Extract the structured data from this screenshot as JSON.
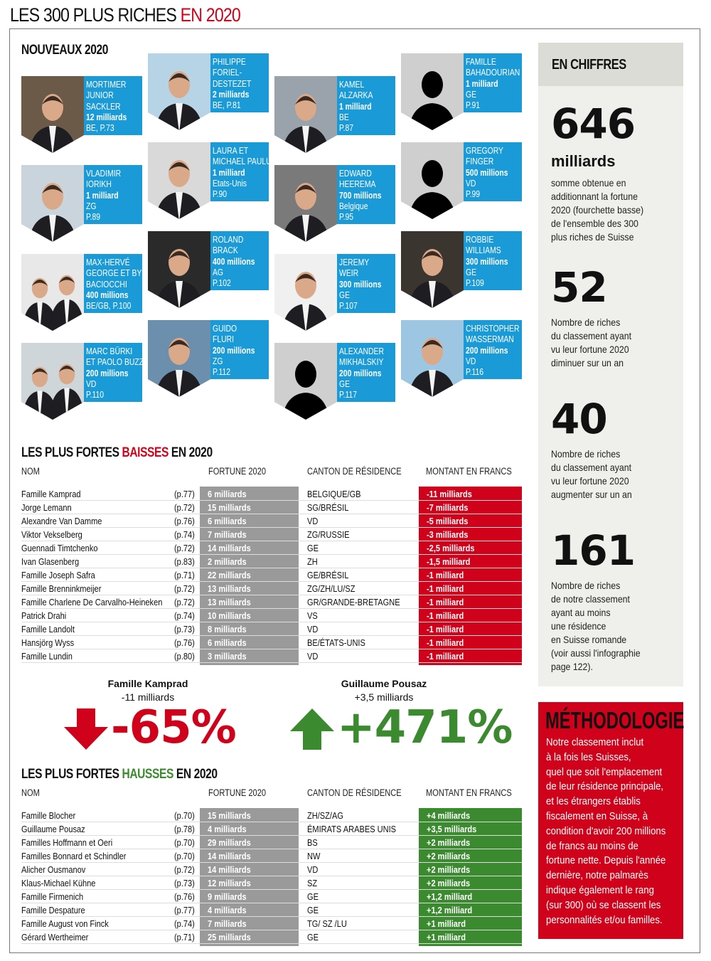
{
  "page_title": {
    "main": "LES 300 PLUS RICHES",
    "accent": "EN 2020"
  },
  "colors": {
    "blue": "#1a9ad6",
    "red": "#d0021b",
    "green": "#3b8a2f",
    "gray": "#9a9a9a",
    "sidebar": "#efefeb"
  },
  "nouveaux": {
    "title": "NOUVEAUX 2020",
    "cards": [
      {
        "name": [
          "MORTIMER",
          "JUNIOR",
          "SACKLER"
        ],
        "amount": "12 milliards",
        "details": [
          "BE, P.73"
        ],
        "photo": "photo"
      },
      {
        "name": [
          "VLADIMIR",
          "IORIKH"
        ],
        "amount": "1 milliard",
        "details": [
          "ZG",
          "P.89"
        ],
        "photo": "photo"
      },
      {
        "name": [
          "MAX-HERVÉ",
          "GEORGE ET BYRON",
          "BACIOCCHI"
        ],
        "amount": "400 millions",
        "details": [
          "BE/GB, P.100"
        ],
        "photo": "photo-duo"
      },
      {
        "name": [
          "MARC BÜRKI",
          "ET PAOLO BUZZI"
        ],
        "amount": "200 millions",
        "details": [
          "VD",
          "P.110"
        ],
        "photo": "photo-duo"
      },
      {
        "name": [
          "PHILIPPE",
          "FORIEL-",
          "DESTEZET"
        ],
        "amount": "2 milliards",
        "details": [
          "BE, P.81"
        ],
        "photo": "photo"
      },
      {
        "name": [
          "LAURA ET",
          "MICHAEL PAULUS"
        ],
        "amount": "1 milliard",
        "details": [
          "Etats-Unis",
          "P.90"
        ],
        "photo": "photo"
      },
      {
        "name": [
          "ROLAND",
          "BRACK"
        ],
        "amount": "400 millions",
        "details": [
          "AG",
          "P.102"
        ],
        "photo": "photo"
      },
      {
        "name": [
          "GUIDO",
          "FLURI"
        ],
        "amount": "200 millions",
        "details": [
          "ZG",
          "P.112"
        ],
        "photo": "photo"
      },
      {
        "name": [
          "KAMEL",
          "ALZARKA"
        ],
        "amount": "1 milliard",
        "details": [
          "BE",
          "P.87"
        ],
        "photo": "photo"
      },
      {
        "name": [
          "EDWARD",
          "HEEREMA"
        ],
        "amount": "700 millions",
        "details": [
          "Belgique",
          "P.95"
        ],
        "photo": "photo"
      },
      {
        "name": [
          "JEREMY",
          "WEIR"
        ],
        "amount": "300 millions",
        "details": [
          "GE",
          "P.107"
        ],
        "photo": "photo"
      },
      {
        "name": [
          "ALEXANDER",
          "MIKHALSKIY"
        ],
        "amount": "200 millions",
        "details": [
          "GE",
          "P.117"
        ],
        "photo": "silhouette"
      },
      {
        "name": [
          "FAMILLE",
          "BAHADOURIAN"
        ],
        "amount": "1 milliard",
        "details": [
          "GE",
          "P.91"
        ],
        "photo": "silhouette"
      },
      {
        "name": [
          "GREGORY",
          "FINGER"
        ],
        "amount": "500 millions",
        "details": [
          "VD",
          "P.99"
        ],
        "photo": "silhouette"
      },
      {
        "name": [
          "ROBBIE",
          "WILLIAMS"
        ],
        "amount": "300 millions",
        "details": [
          "GE",
          "P.109"
        ],
        "photo": "photo"
      },
      {
        "name": [
          "CHRISTOPHER",
          "WASSERMAN"
        ],
        "amount": "200 millions",
        "details": [
          "VD",
          "P.116"
        ],
        "photo": "photo"
      }
    ]
  },
  "columns": {
    "nom": "NOM",
    "fortune": "FORTUNE 2020",
    "canton": "CANTON DE RÉSIDENCE",
    "montant": "MONTANT EN FRANCS"
  },
  "baisses": {
    "title_a": "LES PLUS FORTES",
    "title_b": "BAISSES",
    "title_c": "EN 2020",
    "rows": [
      [
        "Famille Kamprad",
        "(p.77)",
        "6 milliards",
        "BELGIQUE/GB",
        "-11 milliards"
      ],
      [
        "Jorge Lemann",
        "(p.72)",
        "15 milliards",
        "SG/BRÉSIL",
        "-7 milliards"
      ],
      [
        "Alexandre Van Damme",
        "(p.76)",
        "6 milliards",
        "VD",
        "-5 milliards"
      ],
      [
        "Viktor Vekselberg",
        "(p.74)",
        "7 milliards",
        "ZG/RUSSIE",
        "-3 milliards"
      ],
      [
        "Guennadi Timtchenko",
        "(p.72)",
        "14 milliards",
        "GE",
        "-2,5 milliards"
      ],
      [
        "Ivan Glasenberg",
        "(p.83)",
        "2 milliards",
        "ZH",
        "-1,5 milliard"
      ],
      [
        "Famille Joseph Safra",
        "(p.71)",
        "22 milliards",
        "GE/BRÉSIL",
        "-1 milliard"
      ],
      [
        "Famille Brenninkmeijer",
        "(p.72)",
        "13 milliards",
        "ZG/ZH/LU/SZ",
        "-1 milliard"
      ],
      [
        "Famille Charlene De Carvalho-Heineken",
        "(p.72)",
        "13 milliards",
        "GR/GRANDE-BRETAGNE",
        "-1 milliard"
      ],
      [
        "Patrick Drahi",
        "(p.74)",
        "10 milliards",
        "VS",
        "-1 milliard"
      ],
      [
        "Famille Landolt",
        "(p.73)",
        "8 milliards",
        "VD",
        "-1 milliard"
      ],
      [
        "Hansjörg Wyss",
        "(p.76)",
        "6 milliards",
        "BE/ÉTATS-UNIS",
        "-1 milliard"
      ],
      [
        "Famille Lundin",
        "(p.80)",
        "3 milliards",
        "VD",
        "-1 milliard"
      ]
    ]
  },
  "highlights": [
    {
      "name": "Famille Kamprad",
      "change": "-11 milliards",
      "percent": "-65%",
      "direction": "down"
    },
    {
      "name": "Guillaume Pousaz",
      "change": "+3,5 milliards",
      "percent": "+471%",
      "direction": "up"
    }
  ],
  "hausses": {
    "title_a": "LES PLUS FORTES",
    "title_b": "HAUSSES",
    "title_c": "EN 2020",
    "rows": [
      [
        "Famille Blocher",
        "(p.70)",
        "15 milliards",
        "ZH/SZ/AG",
        "+4 milliards"
      ],
      [
        "Guillaume Pousaz",
        "(p.78)",
        "4 milliards",
        "ÉMIRATS ARABES UNIS",
        "+3,5 milliards"
      ],
      [
        "Familles Hoffmann et Oeri",
        "(p.70)",
        "29 milliards",
        "BS",
        "+2 milliards"
      ],
      [
        "Familles Bonnard et Schindler",
        "(p.70)",
        "14 milliards",
        "NW",
        "+2 milliards"
      ],
      [
        "Alicher Ousmanov",
        "(p.72)",
        "14 milliards",
        "VD",
        "+2 milliards"
      ],
      [
        "Klaus-Michael Kühne",
        "(p.73)",
        "12 milliards",
        "SZ",
        "+2 milliards"
      ],
      [
        "Famille Firmenich",
        "(p.76)",
        "9 milliards",
        "GE",
        "+1,2 milliard"
      ],
      [
        "Famille Despature",
        "(p.77)",
        "4 milliards",
        "GE",
        "+1,2 milliard"
      ],
      [
        "Famille August von Finck",
        "(p.74)",
        "7 milliards",
        "TG/ SZ /LU",
        "+1 milliard"
      ],
      [
        "Gérard  Wertheimer",
        "(p.71)",
        "25 milliards",
        "GE",
        "+1 milliard"
      ]
    ]
  },
  "chiffres": {
    "title": "EN CHIFFRES",
    "stats": [
      {
        "number": "646",
        "unit": "milliards",
        "text": [
          "somme obtenue en",
          "additionnant la fortune",
          "2020 (fourchette basse)",
          "de l'ensemble des 300",
          "plus riches de Suisse"
        ]
      },
      {
        "number": "52",
        "unit": "",
        "text": [
          "Nombre de riches",
          "du classement ayant",
          "vu leur fortune 2020",
          "diminuer sur un an"
        ]
      },
      {
        "number": "40",
        "unit": "",
        "text": [
          "Nombre de riches",
          "du classement ayant",
          "vu leur fortune 2020",
          "augmenter sur un an"
        ]
      },
      {
        "number": "161",
        "unit": "",
        "text": [
          "Nombre de riches",
          "de notre classement",
          "ayant au moins",
          "une résidence",
          "en Suisse romande",
          "(voir aussi l'infographie",
          "page 122)."
        ]
      }
    ]
  },
  "methodologie": {
    "title": "MÉTHODOLOGIE",
    "text": [
      "Notre classement inclut",
      "à la fois les Suisses,",
      "quel que soit l'emplacement",
      "de leur résidence principale,",
      "et les étrangers établis",
      "fiscalement en Suisse, à",
      "condition d'avoir 200 millions",
      "de francs au moins de",
      "fortune nette. Depuis l'année",
      "dernière, notre palmarès",
      "indique également le rang",
      "(sur 300) où se classent les",
      "personnalités et/ou familles."
    ]
  }
}
